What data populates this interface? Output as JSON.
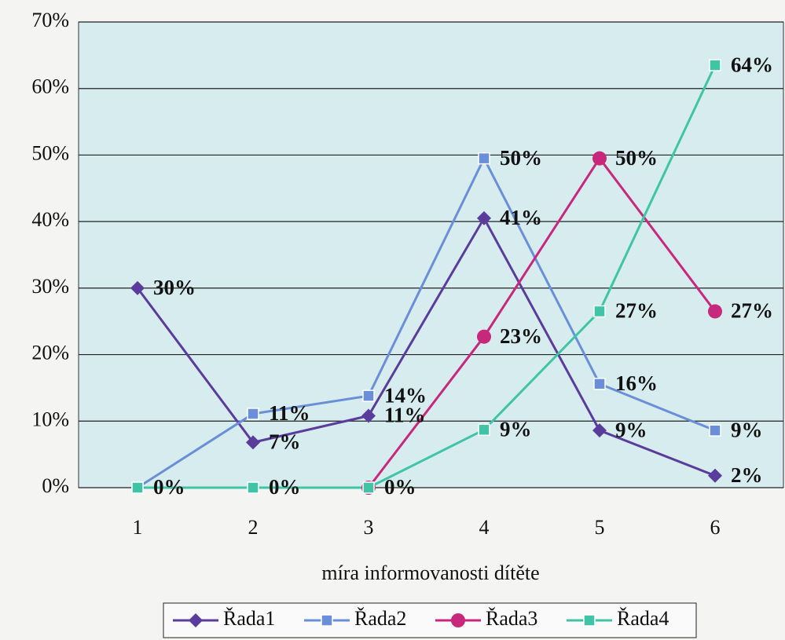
{
  "chart_data": {
    "type": "line",
    "categories": [
      "1",
      "2",
      "3",
      "4",
      "5",
      "6"
    ],
    "x_label": "míra informovanosti dítěte",
    "ylim": [
      0,
      70
    ],
    "yticks": [
      {
        "value": 0,
        "label": "0%"
      },
      {
        "value": 10,
        "label": "10%"
      },
      {
        "value": 20,
        "label": "20%"
      },
      {
        "value": 30,
        "label": "30%"
      },
      {
        "value": 40,
        "label": "40%"
      },
      {
        "value": 50,
        "label": "50%"
      },
      {
        "value": 60,
        "label": "60%"
      },
      {
        "value": 70,
        "label": "70%"
      }
    ],
    "grid": true,
    "legend": "bottom",
    "series": [
      {
        "name": "Řada1",
        "color": "#5a3c9c",
        "marker": "diamond",
        "values": [
          30,
          6.8,
          10.8,
          40.5,
          8.6,
          1.8
        ],
        "value_labels": [
          "30%",
          "7%",
          "11%",
          "41%",
          "9%",
          "2%"
        ]
      },
      {
        "name": "Řada2",
        "color": "#6a8fd8",
        "marker": "square",
        "values": [
          0,
          11.1,
          13.8,
          49.5,
          15.6,
          8.6
        ],
        "value_labels": [
          null,
          "11%",
          "14%",
          "50%",
          "16%",
          "9%"
        ]
      },
      {
        "name": "Řada3",
        "color": "#c8287c",
        "marker": "circle",
        "values": [
          null,
          null,
          0,
          22.7,
          49.5,
          26.5
        ],
        "value_labels": [
          null,
          null,
          null,
          "23%",
          "50%",
          "27%"
        ]
      },
      {
        "name": "Řada4",
        "color": "#40c4a6",
        "marker": "square",
        "values": [
          0,
          0,
          0,
          8.7,
          26.5,
          63.5
        ],
        "value_labels": [
          "0%",
          "0%",
          "0%",
          "9%",
          "27%",
          "64%"
        ]
      }
    ]
  }
}
